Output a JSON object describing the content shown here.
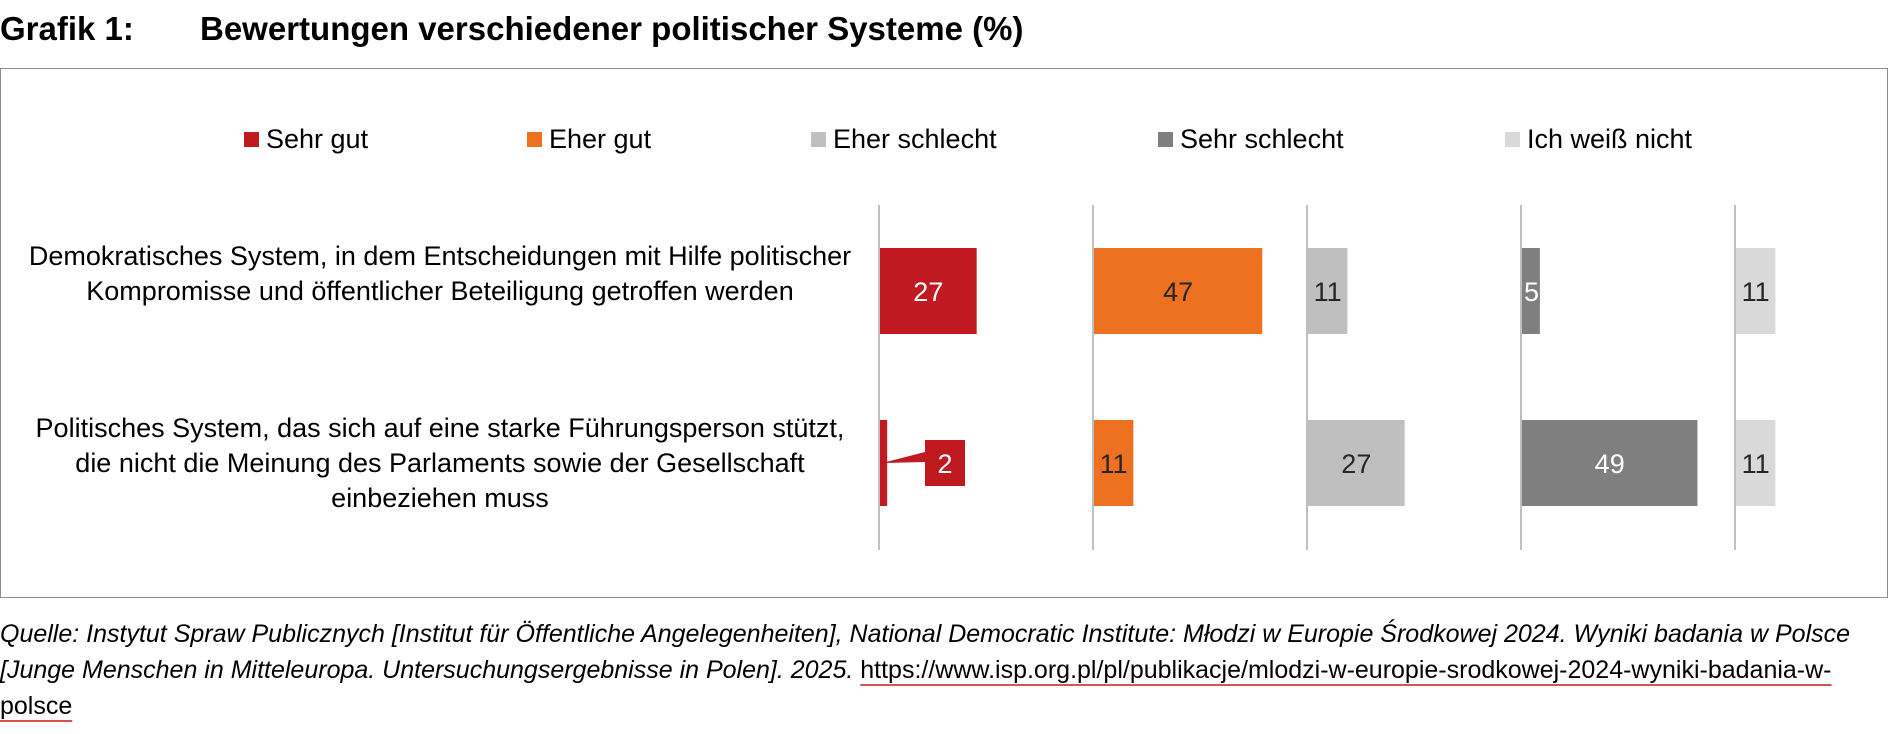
{
  "title": {
    "number": "Grafik 1:",
    "text": "Bewertungen verschiedener politischer Systeme (%)"
  },
  "chart_data": {
    "type": "bar",
    "layout": "small-multiples-horizontal",
    "title": "Bewertungen verschiedener politischer Systeme (%)",
    "categories": [
      "Demokratisches System, in dem Entscheidungen mit Hilfe politischer Kompromisse und öffentlicher Beteiligung getroffen werden",
      "Politisches System, das sich auf eine starke Führungsperson stützt, die nicht die Meinung des Parlaments sowie der Gesellschaft einbeziehen muss"
    ],
    "series": [
      {
        "name": "Sehr gut",
        "color": "#c0191f",
        "values": [
          27,
          2
        ]
      },
      {
        "name": "Eher gut",
        "color": "#ee7121",
        "values": [
          47,
          11
        ]
      },
      {
        "name": "Eher schlecht",
        "color": "#bfbfbf",
        "values": [
          11,
          27
        ]
      },
      {
        "name": "Sehr schlecht",
        "color": "#7f7f7f",
        "values": [
          5,
          49
        ]
      },
      {
        "name": "Ich weiß nicht",
        "color": "#d9d9d9",
        "values": [
          11,
          11
        ]
      }
    ],
    "xlim": [
      0,
      60
    ],
    "legend": "top",
    "xlabel": "",
    "ylabel": ""
  },
  "footer": {
    "source": "Quelle: Instytut Spraw Publicznych [Institut für Öffentliche Angelegenheiten], National Democratic Institute: Młodzi w Europie Środkowej 2024. Wyniki badania w Polsce [Junge Menschen in Mitteleuropa. Untersuchungsergebnisse in Polen]. 2025. ",
    "url": "https://www.isp.org.pl/pl/publikacje/mlodzi-w-europie-srodkowej-2024-wyniki-badania-w-polsce"
  }
}
